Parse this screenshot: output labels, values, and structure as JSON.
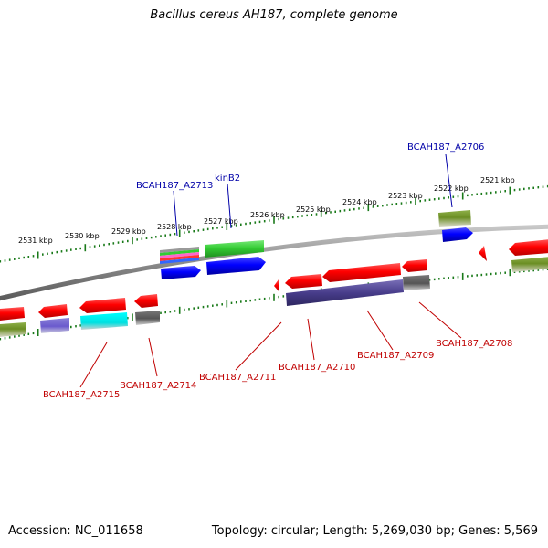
{
  "title": "Bacillus cereus AH187, complete genome",
  "footer": {
    "accession": "Accession: NC_011658",
    "summary": "Topology: circular; Length: 5,269,030 bp; Genes: 5,569"
  },
  "scale_labels": [
    "2531 kbp",
    "2530 kbp",
    "2529 kbp",
    "2528 kbp",
    "2527 kbp",
    "2526 kbp",
    "2525 kbp",
    "2524 kbp",
    "2523 kbp",
    "2522 kbp",
    "2521 kbp"
  ],
  "top_labels": [
    "BCAH187_A2706",
    "BCAH187_A2713",
    "kinB2"
  ],
  "bottom_labels": [
    "BCAH187_A2715",
    "BCAH187_A2714",
    "BCAH187_A2711",
    "BCAH187_A2710",
    "BCAH187_A2709",
    "BCAH187_A2708"
  ],
  "colors": {
    "cds": "#ff0000",
    "gene": "#0000ff",
    "operon_green": "#33cc33",
    "olive": "#6b8e23",
    "purple": "#483d8b",
    "cyan": "#00ffff",
    "gray": "#666666",
    "top_label": "#0000a8",
    "bottom_label": "#c00000"
  }
}
